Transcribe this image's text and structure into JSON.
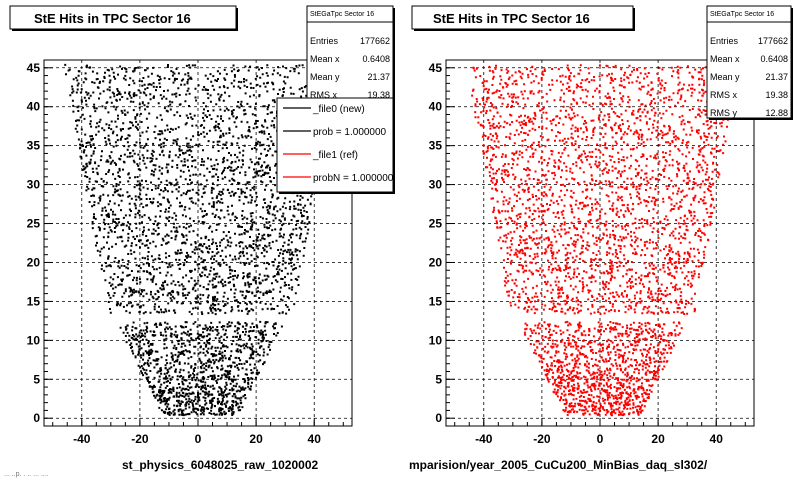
{
  "panels": [
    {
      "id": "left",
      "title": "StE Hits in TPC Sector 16",
      "caption": "st_physics_6048025_raw_1020002",
      "stats": {
        "name": "StEGaTpc Sector 16",
        "rows": [
          {
            "label": "Entries",
            "value": "177662"
          },
          {
            "label": "Mean x",
            "value": "0.6408"
          },
          {
            "label": "Mean y",
            "value": "21.37"
          },
          {
            "label": "RMS x",
            "value": "19.38"
          }
        ]
      },
      "legend": [
        {
          "label": "_file0 (new)",
          "color": "#000000"
        },
        {
          "label": "prob = 1.000000",
          "color": "#000000"
        },
        {
          "label": "_file1 (ref)",
          "color": "#ff0000"
        },
        {
          "label": "probN = 1.000000",
          "color": "#ff0000"
        }
      ],
      "marker_color": "#000000"
    },
    {
      "id": "right",
      "title": "StE Hits in TPC Sector 16",
      "caption": "mparision/year_2005_CuCu200_MinBias_daq_sl302/",
      "stats": {
        "name": "StEGaTpc Sector 16",
        "rows": [
          {
            "label": "Entries",
            "value": "177662"
          },
          {
            "label": "Mean x",
            "value": "0.6408"
          },
          {
            "label": "Mean y",
            "value": "21.37"
          },
          {
            "label": "RMS x",
            "value": "19.38"
          },
          {
            "label": "RMS y",
            "value": "12.88"
          }
        ]
      },
      "legend": [],
      "marker_color": "#ff0000"
    }
  ],
  "footer_text": "... ..p. . .. ... ....",
  "chart_data": [
    {
      "type": "scatter",
      "title": "StE Hits in TPC Sector 16",
      "xlabel": "",
      "ylabel": "",
      "xlim": [
        -53,
        53
      ],
      "ylim": [
        -1,
        46
      ],
      "x_ticks": [
        -40,
        -20,
        0,
        20,
        40
      ],
      "y_ticks": [
        0,
        5,
        10,
        15,
        20,
        25,
        30,
        35,
        40,
        45
      ],
      "grid": true,
      "legend_position": "top-right",
      "series": [
        {
          "name": "_file0 (new)",
          "color": "#000000",
          "distribution": {
            "upper_region": {
              "y": [
                13.5,
                45.5
              ],
              "x_halfwidth_at_y_min": 32,
              "x_halfwidth_at_y_max": 47
            },
            "lower_region": {
              "y": [
                0.5,
                12.5
              ],
              "x_halfwidth_at_y_min": 13,
              "x_halfwidth_at_y_max": 29
            },
            "x_center": 0.6,
            "gap_y": [
              12.5,
              13.5
            ]
          }
        }
      ]
    },
    {
      "type": "scatter",
      "title": "StE Hits in TPC Sector 16",
      "xlabel": "",
      "ylabel": "",
      "xlim": [
        -53,
        53
      ],
      "ylim": [
        -1,
        46
      ],
      "x_ticks": [
        -40,
        -20,
        0,
        20,
        40
      ],
      "y_ticks": [
        0,
        5,
        10,
        15,
        20,
        25,
        30,
        35,
        40,
        45
      ],
      "grid": true,
      "series": [
        {
          "name": "_file1 (ref)",
          "color": "#ff0000",
          "distribution": {
            "upper_region": {
              "y": [
                13.5,
                45.5
              ],
              "x_halfwidth_at_y_min": 32,
              "x_halfwidth_at_y_max": 47
            },
            "lower_region": {
              "y": [
                0.5,
                12.5
              ],
              "x_halfwidth_at_y_min": 13,
              "x_halfwidth_at_y_max": 29
            },
            "x_center": 0.6,
            "gap_y": [
              12.5,
              13.5
            ]
          }
        }
      ]
    }
  ]
}
